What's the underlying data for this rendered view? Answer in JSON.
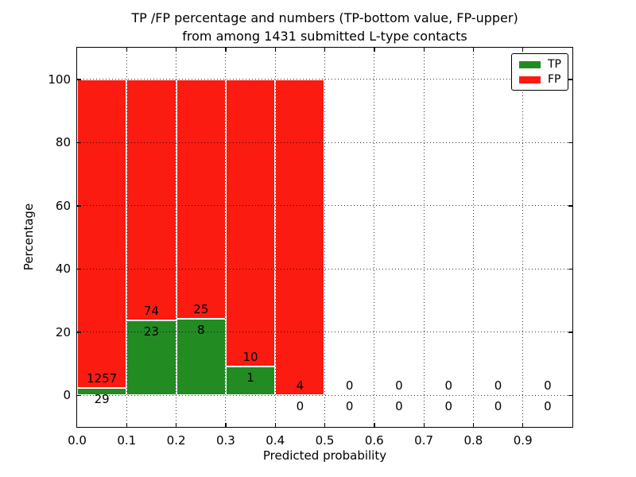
{
  "title_lines": [
    "TP /FP percentage and numbers (TP-bottom value, FP-upper)",
    "from among 1431 submitted L-type contacts"
  ],
  "chart_data": {
    "type": "bar",
    "subtype": "stacked-percentage-histogram",
    "title": "TP /FP percentage and numbers (TP-bottom value, FP-upper) from among 1431 submitted L-type contacts",
    "total_submitted": 1431,
    "xlabel": "Predicted probability",
    "ylabel": "Percentage",
    "xlim": [
      0.0,
      1.0
    ],
    "ylim": [
      -10,
      110
    ],
    "bin_width": 0.1,
    "grid": true,
    "legend_position": "upper-right",
    "xticks": [
      {
        "value": 0.0,
        "label": "0.0"
      },
      {
        "value": 0.1,
        "label": "0.1"
      },
      {
        "value": 0.2,
        "label": "0.2"
      },
      {
        "value": 0.3,
        "label": "0.3"
      },
      {
        "value": 0.4,
        "label": "0.4"
      },
      {
        "value": 0.5,
        "label": "0.5"
      },
      {
        "value": 0.6,
        "label": "0.6"
      },
      {
        "value": 0.7,
        "label": "0.7"
      },
      {
        "value": 0.8,
        "label": "0.8"
      },
      {
        "value": 0.9,
        "label": "0.9"
      }
    ],
    "yticks": [
      {
        "value": 0,
        "label": "0"
      },
      {
        "value": 20,
        "label": "20"
      },
      {
        "value": 40,
        "label": "40"
      },
      {
        "value": 60,
        "label": "60"
      },
      {
        "value": 80,
        "label": "80"
      },
      {
        "value": 100,
        "label": "100"
      }
    ],
    "series": [
      {
        "name": "TP",
        "color": "#228b22"
      },
      {
        "name": "FP",
        "color": "#fb1b10"
      }
    ],
    "bins": [
      {
        "x0": 0.0,
        "x1": 0.1,
        "tp": 29,
        "fp": 1257
      },
      {
        "x0": 0.1,
        "x1": 0.2,
        "tp": 23,
        "fp": 74
      },
      {
        "x0": 0.2,
        "x1": 0.3,
        "tp": 8,
        "fp": 25
      },
      {
        "x0": 0.3,
        "x1": 0.4,
        "tp": 1,
        "fp": 10
      },
      {
        "x0": 0.4,
        "x1": 0.5,
        "tp": 0,
        "fp": 4
      },
      {
        "x0": 0.5,
        "x1": 0.6,
        "tp": 0,
        "fp": 0
      },
      {
        "x0": 0.6,
        "x1": 0.7,
        "tp": 0,
        "fp": 0
      },
      {
        "x0": 0.7,
        "x1": 0.8,
        "tp": 0,
        "fp": 0
      },
      {
        "x0": 0.8,
        "x1": 0.9,
        "tp": 0,
        "fp": 0
      },
      {
        "x0": 0.9,
        "x1": 1.0,
        "tp": 0,
        "fp": 0
      }
    ],
    "legend": [
      {
        "label": "TP",
        "color": "#228b22"
      },
      {
        "label": "FP",
        "color": "#fb1b10"
      }
    ]
  }
}
